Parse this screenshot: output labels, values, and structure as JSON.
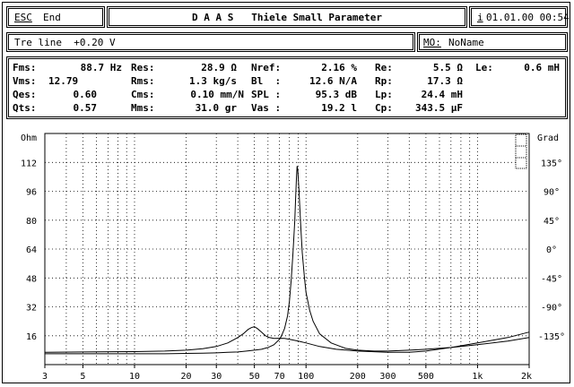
{
  "topbar": {
    "esc_label": "ESC",
    "end_label": "End",
    "title": "D A A S   Thiele Small Parameter",
    "info_key": "i",
    "datetime": "01.01.00 00:54"
  },
  "subbar": {
    "tre_line": "Tre line  +0.20 V",
    "mo_label": "MO:",
    "name_value": "NoName"
  },
  "params": {
    "row1": [
      {
        "label": "Fms:",
        "value": "88.7 Hz"
      },
      {
        "label": "Res:",
        "value": "28.9 Ω"
      },
      {
        "label": "Nref:",
        "value": "2.16 %"
      },
      {
        "label": "Re:",
        "value": "5.5 Ω"
      },
      {
        "label": "Le:",
        "value": "0.6 mH"
      }
    ],
    "row2": [
      {
        "label": "Vms:",
        "value": "12.79"
      },
      {
        "label": "Rms:",
        "value": "1.3 kg/s"
      },
      {
        "label": "Bl  :",
        "value": "12.6 N/A"
      },
      {
        "label": "Rp:",
        "value": "17.3 Ω"
      }
    ],
    "row3": [
      {
        "label": "Qes:",
        "value": "0.60"
      },
      {
        "label": "Cms:",
        "value": "0.10 mm/N"
      },
      {
        "label": "SPL :",
        "value": "95.3 dB"
      },
      {
        "label": "Lp:",
        "value": "24.4 mH"
      }
    ],
    "row4": [
      {
        "label": "Qts:",
        "value": "0.57"
      },
      {
        "label": "Mms:",
        "value": "31.0 gr"
      },
      {
        "label": "Vas :",
        "value": "19.2 l"
      },
      {
        "label": "Cp:",
        "value": "343.5 μF"
      }
    ]
  },
  "chart_data": {
    "type": "line",
    "ylabel_left": "Ohm",
    "ylabel_right": "Grad",
    "x_scale": "log",
    "xlim": [
      3,
      2000
    ],
    "x_ticks": [
      "3",
      "5",
      "10",
      "20",
      "30",
      "50",
      "70",
      "100",
      "200",
      "300",
      "500",
      "1k",
      "2k"
    ],
    "x_tick_values": [
      3,
      5,
      10,
      20,
      30,
      50,
      70,
      100,
      200,
      300,
      500,
      1000,
      2000
    ],
    "y_left_ticks": [
      "112",
      "96",
      "80",
      "64",
      "48",
      "32",
      "16"
    ],
    "y_left_tick_values": [
      112,
      96,
      80,
      64,
      48,
      32,
      16
    ],
    "y_left_lim": [
      0,
      128
    ],
    "y_right_ticks": [
      "135°",
      "90°",
      "45°",
      "0°",
      "-45°",
      "-90°",
      "-135°"
    ],
    "y_right_tick_values": [
      135,
      90,
      45,
      0,
      -45,
      -90,
      -135
    ],
    "grid": true,
    "series": [
      {
        "kind": "impedance",
        "x": [
          3,
          5,
          10,
          15,
          20,
          25,
          30,
          35,
          40,
          45,
          50,
          55,
          60,
          65,
          70,
          72,
          75,
          78,
          80,
          82,
          84,
          86,
          87,
          88,
          88.7,
          89.5,
          91,
          93,
          95,
          98,
          100,
          105,
          110,
          120,
          140,
          170,
          200,
          250,
          300,
          400,
          500,
          700,
          1000,
          1500,
          2000
        ],
        "y": [
          6,
          6,
          6,
          6,
          6.2,
          6.3,
          6.5,
          6.8,
          7,
          7.5,
          8,
          8.5,
          9.5,
          11,
          14,
          16,
          20,
          27,
          35,
          47,
          62,
          80,
          92,
          104,
          110,
          108,
          96,
          78,
          62,
          48,
          40,
          30,
          24,
          17,
          12,
          9,
          8,
          7.5,
          7.5,
          8,
          8.5,
          9.5,
          11,
          13,
          15
        ]
      },
      {
        "kind": "phase",
        "x": [
          3,
          5,
          10,
          15,
          20,
          25,
          30,
          35,
          40,
          43,
          46,
          48,
          50,
          52,
          55,
          58,
          61,
          65,
          70,
          75,
          80,
          90,
          100,
          120,
          150,
          200,
          300,
          400,
          500,
          700,
          1000,
          1500,
          2000
        ],
        "y": [
          6.8,
          7,
          7.2,
          7.5,
          8,
          8.8,
          10,
          12,
          15,
          17,
          19.5,
          20.5,
          21,
          20,
          18,
          16,
          15,
          14.5,
          14.6,
          14.5,
          14,
          13,
          12,
          10,
          8.5,
          7.5,
          6.8,
          6.8,
          7.5,
          9.5,
          12,
          15,
          18
        ]
      }
    ]
  }
}
